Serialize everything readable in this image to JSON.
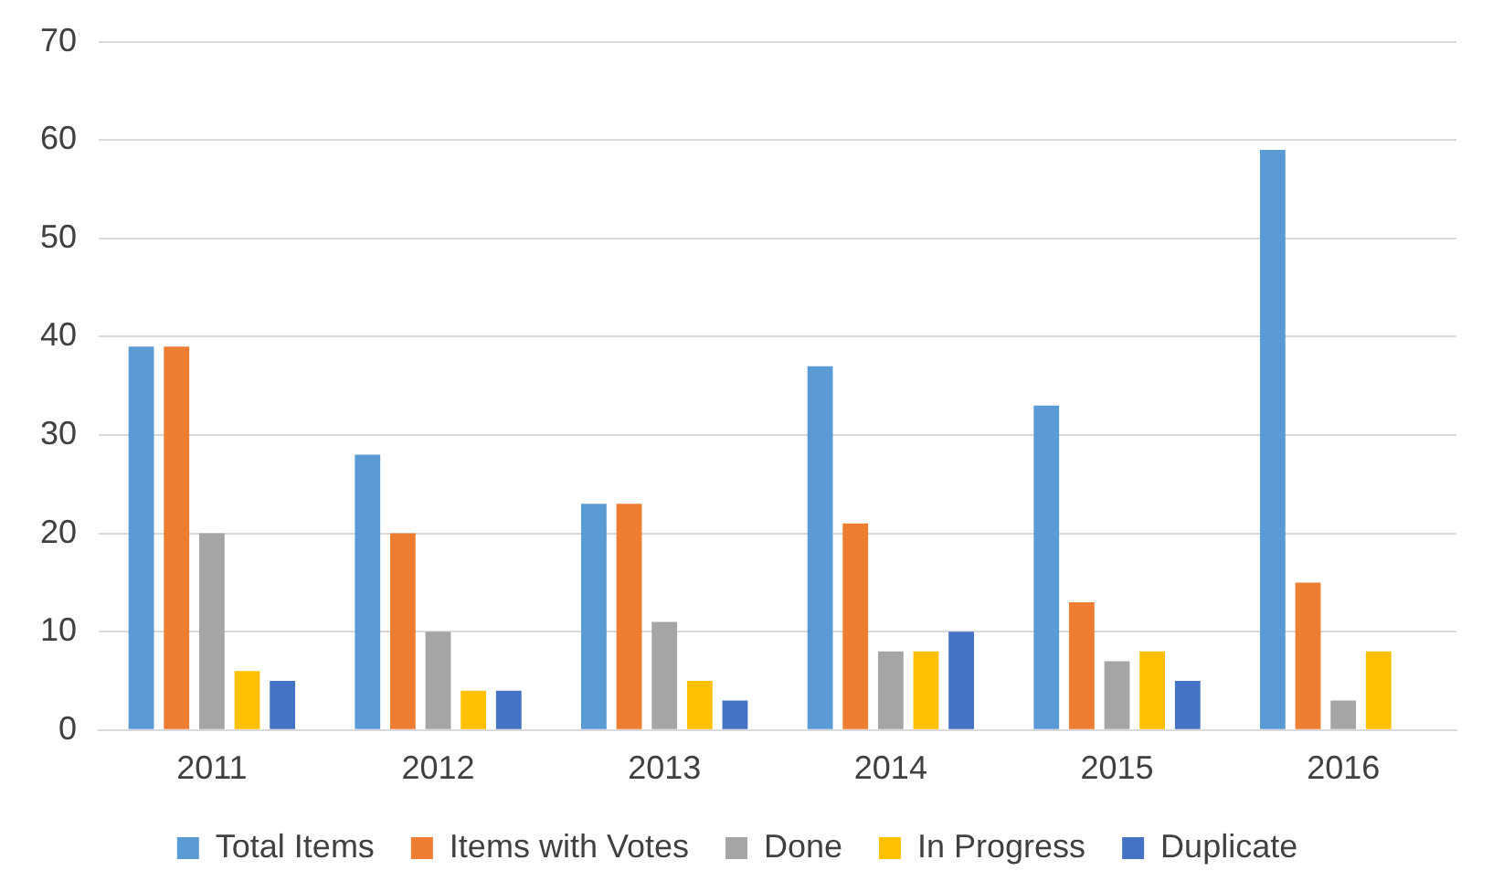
{
  "chart_data": {
    "type": "bar",
    "categories": [
      "2011",
      "2012",
      "2013",
      "2014",
      "2015",
      "2016"
    ],
    "series": [
      {
        "name": "Total Items",
        "color": "#5b9bd5",
        "values": [
          39,
          28,
          23,
          37,
          33,
          59
        ]
      },
      {
        "name": "Items with Votes",
        "color": "#ed7d31",
        "values": [
          39,
          20,
          23,
          21,
          13,
          15
        ]
      },
      {
        "name": "Done",
        "color": "#a5a5a5",
        "values": [
          20,
          10,
          11,
          8,
          7,
          3
        ]
      },
      {
        "name": "In Progress",
        "color": "#ffc000",
        "values": [
          6,
          4,
          5,
          8,
          8,
          8
        ]
      },
      {
        "name": "Duplicate",
        "color": "#4472c4",
        "values": [
          5,
          4,
          3,
          10,
          5,
          null
        ]
      }
    ],
    "ylim": [
      0,
      70
    ],
    "yticks": [
      0,
      10,
      20,
      30,
      40,
      50,
      60,
      70
    ],
    "grid": "y",
    "legend": "bottom"
  }
}
